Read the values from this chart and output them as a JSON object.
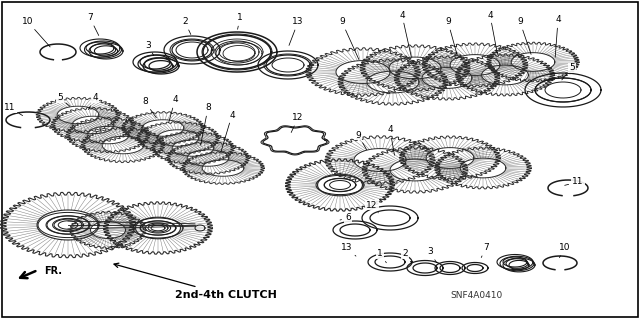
{
  "background_color": "#ffffff",
  "border_color": "#000000",
  "diagram_label": "2nd-4th CLUTCH",
  "part_number": "SNF4A0410",
  "fr_label": "FR.",
  "figsize": [
    6.4,
    3.19
  ],
  "dpi": 100,
  "text_color": "#000000",
  "line_color": "#1a1a1a",
  "label_fontsize": 6.5,
  "gear_color": "#2a2a2a",
  "ring_color": "#1a1a1a"
}
